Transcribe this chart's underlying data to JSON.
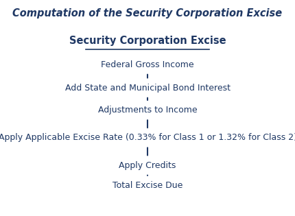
{
  "title": "Computation of the Security Corporation Excise",
  "subtitle": "Security Corporation Excise",
  "flow_items": [
    "Federal Gross Income",
    "Add State and Municipal Bond Interest",
    "Adjustments to Income",
    "Apply Applicable Excise Rate (0.33% for Class 1 or 1.32% for Class 2)",
    "Apply Credits",
    "Total Excise Due"
  ],
  "title_color": "#1f3864",
  "subtitle_color": "#1f3864",
  "text_color": "#1f3864",
  "arrow_color": "#1f3864",
  "bg_color": "#ffffff",
  "title_fontsize": 10.5,
  "subtitle_fontsize": 10.5,
  "item_fontsize": 9.0,
  "fig_width": 4.3,
  "fig_height": 3.15,
  "dpi": 100
}
